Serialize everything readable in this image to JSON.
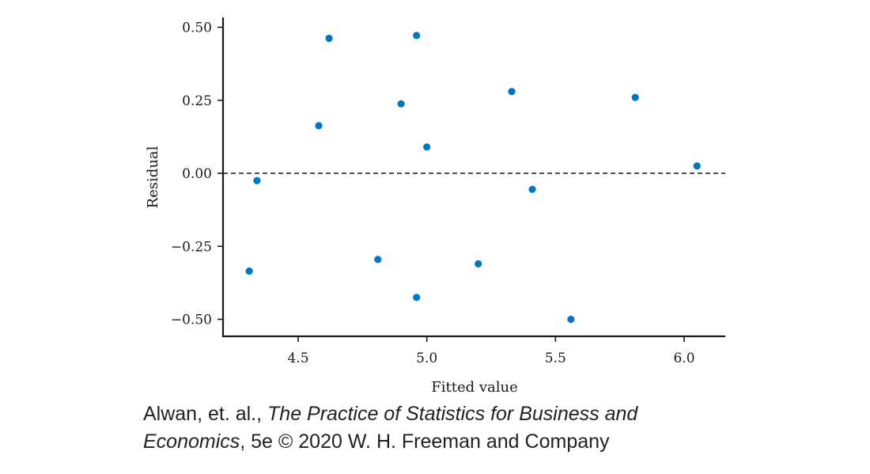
{
  "chart_data": {
    "type": "scatter",
    "xlabel": "Fitted value",
    "ylabel": "Residual",
    "xlim": [
      4.18,
      6.16
    ],
    "ylim": [
      -0.555,
      0.555
    ],
    "x_ticks": [
      4.5,
      5.0,
      5.5,
      6.0
    ],
    "x_tick_labels": [
      "4.5",
      "5.0",
      "5.5",
      "6.0"
    ],
    "y_ticks": [
      0.5,
      0.25,
      0.0,
      -0.25,
      -0.5
    ],
    "y_tick_labels": [
      "0.50",
      "0.25",
      "0.00",
      "−0.25",
      "−0.50"
    ],
    "reference_line": {
      "y": 0,
      "style": "dashed"
    },
    "grid": false,
    "marker_color": "#0077c0",
    "points": [
      {
        "x": 4.31,
        "y": -0.335
      },
      {
        "x": 4.34,
        "y": -0.025
      },
      {
        "x": 4.58,
        "y": 0.163
      },
      {
        "x": 4.62,
        "y": 0.462
      },
      {
        "x": 4.81,
        "y": -0.295
      },
      {
        "x": 4.9,
        "y": 0.238
      },
      {
        "x": 4.96,
        "y": 0.472
      },
      {
        "x": 4.96,
        "y": -0.425
      },
      {
        "x": 5.0,
        "y": 0.09
      },
      {
        "x": 5.2,
        "y": -0.31
      },
      {
        "x": 5.33,
        "y": 0.28
      },
      {
        "x": 5.41,
        "y": -0.055
      },
      {
        "x": 5.56,
        "y": -0.5
      },
      {
        "x": 5.81,
        "y": 0.26
      },
      {
        "x": 6.05,
        "y": 0.025
      }
    ]
  },
  "caption": {
    "line1_prefix": "Alwan, et. al., ",
    "line1_title": "The Practice of Statistics for Business and",
    "line2_title": "Economics",
    "line2_suffix": ", 5e © 2020 W. H. Freeman and Company"
  }
}
